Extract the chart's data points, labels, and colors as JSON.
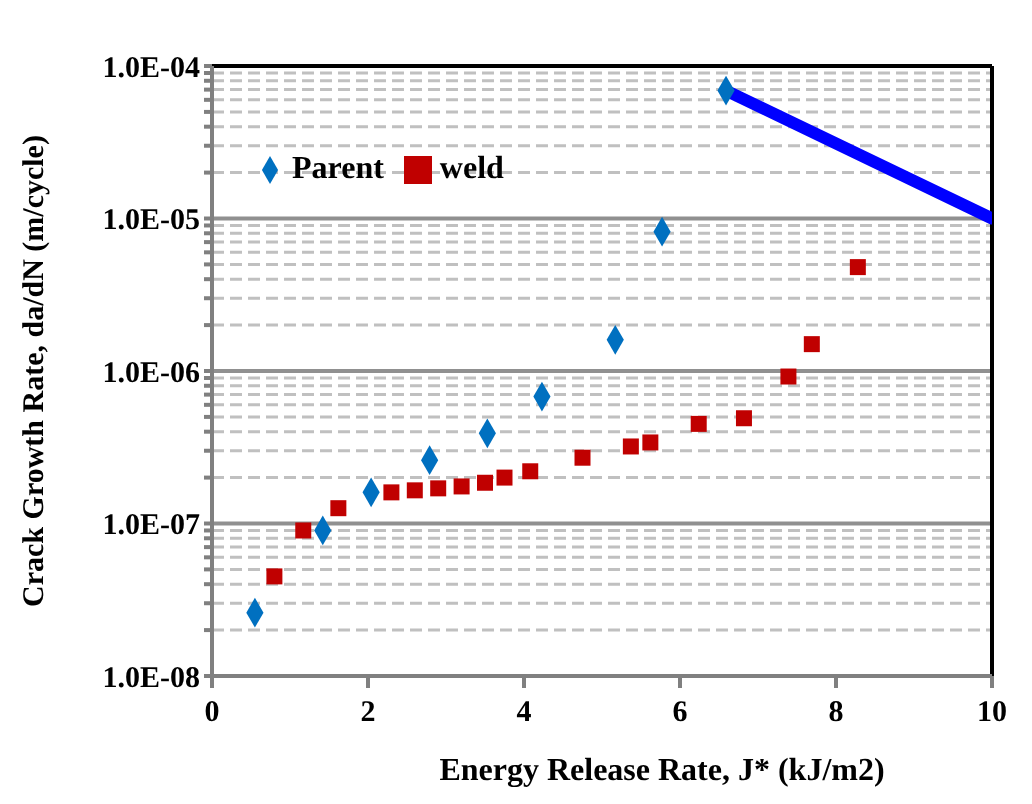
{
  "chart_data": {
    "type": "scatter",
    "xlabel": "Energy Release Rate, J* (kJ/m2)",
    "ylabel": "Crack Growth Rate, da/dN (m/cycle)",
    "series": [
      {
        "name": "Parent",
        "color": "#0070c0",
        "marker": "diamond",
        "x": [
          0.55,
          1.42,
          2.04,
          2.79,
          3.53,
          4.23,
          5.17,
          5.77,
          6.59
        ],
        "values": [
          2.6e-08,
          9e-08,
          1.6e-07,
          2.6e-07,
          3.9e-07,
          6.8e-07,
          1.6e-06,
          8.2e-06,
          6.9e-05
        ]
      },
      {
        "name": "weld",
        "color": "#c00000",
        "marker": "square",
        "x": [
          0.8,
          1.17,
          1.62,
          2.3,
          2.6,
          2.9,
          3.2,
          3.5,
          3.75,
          4.08,
          4.75,
          5.37,
          5.62,
          6.24,
          6.82,
          7.39,
          7.69,
          8.28
        ],
        "values": [
          4.5e-08,
          9e-08,
          1.26e-07,
          1.6e-07,
          1.65e-07,
          1.7e-07,
          1.75e-07,
          1.85e-07,
          2e-07,
          2.2e-07,
          2.7e-07,
          3.2e-07,
          3.4e-07,
          4.5e-07,
          4.9e-07,
          9.2e-07,
          1.5e-06,
          4.8e-06
        ]
      },
      {
        "type": "line",
        "color": "#0000ff",
        "marker": "none",
        "x": [
          6.59,
          10
        ],
        "values": [
          6.9e-05,
          1e-05
        ]
      }
    ],
    "log": "y",
    "xlim": [
      0,
      10
    ],
    "xticks": [
      0,
      2,
      4,
      6,
      8,
      10
    ],
    "ylim": [
      1e-08,
      0.0001
    ],
    "yticks": [
      {
        "value": 1e-08,
        "label": "1.0E-08"
      },
      {
        "value": 2e-08,
        "label": null
      },
      {
        "value": 3e-08,
        "label": null
      },
      {
        "value": 4e-08,
        "label": null
      },
      {
        "value": 5e-08,
        "label": null
      },
      {
        "value": 6e-08,
        "label": null
      },
      {
        "value": 7e-08,
        "label": null
      },
      {
        "value": 8e-08,
        "label": null
      },
      {
        "value": 9e-08,
        "label": null
      },
      {
        "value": 1e-07,
        "label": "1.0E-07"
      },
      {
        "value": 2e-07,
        "label": null
      },
      {
        "value": 3e-07,
        "label": null
      },
      {
        "value": 4e-07,
        "label": null
      },
      {
        "value": 5e-07,
        "label": null
      },
      {
        "value": 6e-07,
        "label": null
      },
      {
        "value": 7e-07,
        "label": null
      },
      {
        "value": 8e-07,
        "label": null
      },
      {
        "value": 9e-07,
        "label": null
      },
      {
        "value": 1e-06,
        "label": "1.0E-06"
      },
      {
        "value": 2e-06,
        "label": null
      },
      {
        "value": 3e-06,
        "label": null
      },
      {
        "value": 4e-06,
        "label": null
      },
      {
        "value": 5e-06,
        "label": null
      },
      {
        "value": 6e-06,
        "label": null
      },
      {
        "value": 7e-06,
        "label": null
      },
      {
        "value": 8e-06,
        "label": null
      },
      {
        "value": 9e-06,
        "label": null
      },
      {
        "value": 1e-05,
        "label": "1.0E-05"
      },
      {
        "value": 2e-05,
        "label": null
      },
      {
        "value": 3e-05,
        "label": null
      },
      {
        "value": 4e-05,
        "label": null
      },
      {
        "value": 5e-05,
        "label": null
      },
      {
        "value": 6e-05,
        "label": null
      },
      {
        "value": 7e-05,
        "label": null
      },
      {
        "value": 8e-05,
        "label": null
      },
      {
        "value": 9e-05,
        "label": null
      },
      {
        "value": 0.0001,
        "label": "1.0E-04"
      }
    ],
    "grid": "y",
    "legend": "top left"
  }
}
